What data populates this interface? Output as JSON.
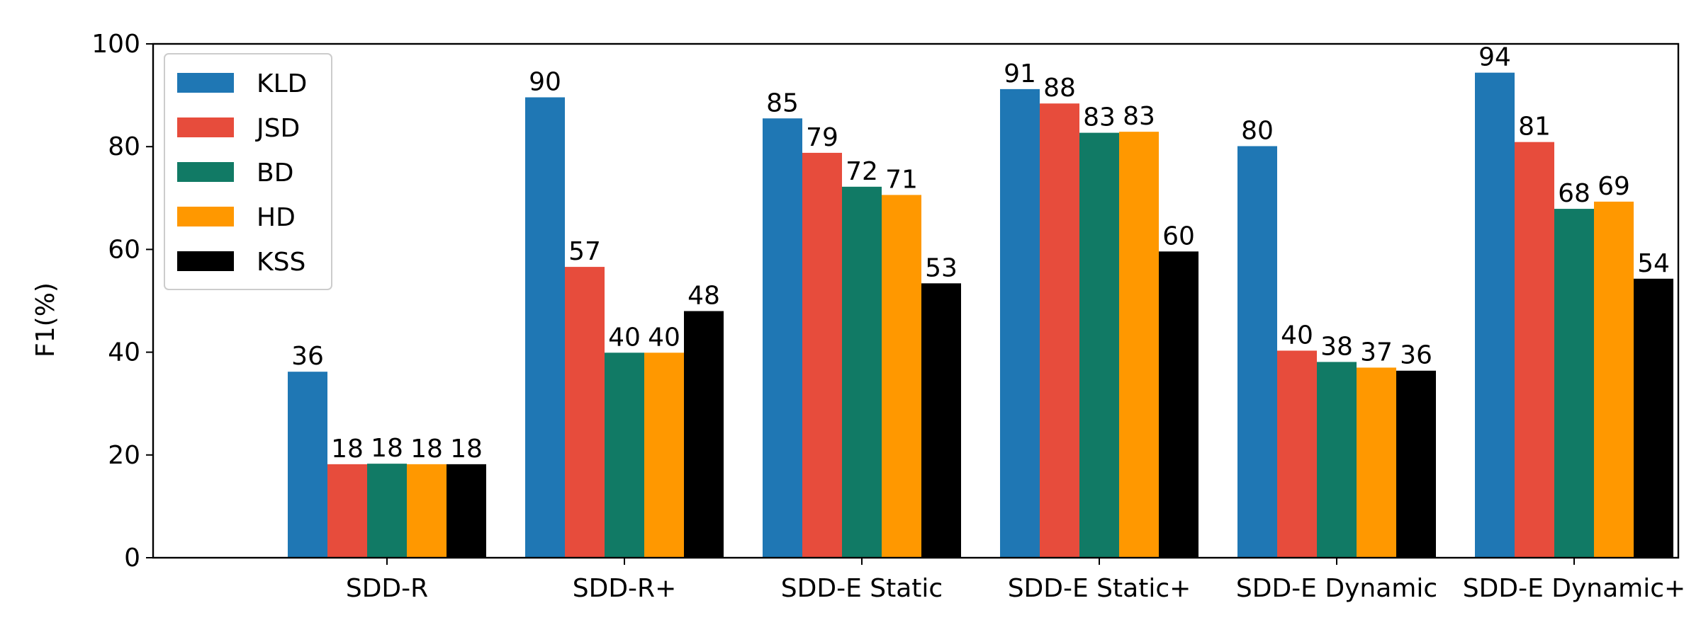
{
  "chart_data": {
    "type": "bar",
    "title": "",
    "xlabel": "",
    "ylabel": "F1(%)",
    "ylim": [
      0,
      100
    ],
    "yticks": [
      0,
      20,
      40,
      60,
      80,
      100
    ],
    "grid": false,
    "legend_position": "top-left",
    "categories": [
      "SDD-R",
      "SDD-R+",
      "SDD-E Static",
      "SDD-E Static+",
      "SDD-E Dynamic",
      "SDD-E Dynamic+"
    ],
    "series": [
      {
        "name": "KLD",
        "color": "#1f77b4",
        "values": [
          36.2,
          89.6,
          85.5,
          91.2,
          80.1,
          94.4
        ],
        "labels": [
          "36",
          "90",
          "85",
          "91",
          "80",
          "94"
        ]
      },
      {
        "name": "JSD",
        "color": "#e74c3c",
        "values": [
          18.2,
          56.6,
          78.8,
          88.4,
          40.3,
          80.9
        ],
        "labels": [
          "18",
          "57",
          "79",
          "88",
          "40",
          "81"
        ]
      },
      {
        "name": "BD",
        "color": "#117a65",
        "values": [
          18.3,
          39.9,
          72.2,
          82.7,
          38.1,
          67.9
        ],
        "labels": [
          "18",
          "40",
          "72",
          "83",
          "38",
          "68"
        ]
      },
      {
        "name": "HD",
        "color": "#ff9800",
        "values": [
          18.2,
          39.9,
          70.6,
          82.9,
          37.0,
          69.3
        ],
        "labels": [
          "18",
          "40",
          "71",
          "83",
          "37",
          "69"
        ]
      },
      {
        "name": "KSS",
        "color": "#000000",
        "values": [
          18.2,
          48.0,
          53.4,
          59.6,
          36.4,
          54.3
        ],
        "labels": [
          "18",
          "48",
          "53",
          "60",
          "36",
          "54"
        ]
      }
    ]
  }
}
